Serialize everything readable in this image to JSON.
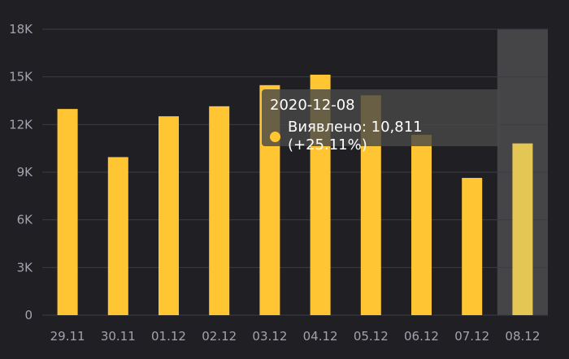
{
  "chart_data": {
    "type": "bar",
    "categories": [
      "29.11",
      "30.11",
      "01.12",
      "02.12",
      "03.12",
      "04.12",
      "05.12",
      "06.12",
      "07.12",
      "08.12"
    ],
    "series": [
      {
        "name": "Виявлено",
        "values": [
          12980,
          9950,
          12520,
          13150,
          14480,
          15140,
          13840,
          11350,
          8640,
          10811
        ]
      }
    ],
    "ylim": [
      0,
      18000
    ],
    "yticks": [
      "0",
      "3K",
      "6K",
      "9K",
      "12K",
      "15K",
      "18K"
    ],
    "ytick_values": [
      0,
      3000,
      6000,
      9000,
      12000,
      15000,
      18000
    ],
    "grid": true,
    "highlighted_index": 9,
    "colors": {
      "bar": "#ffc533",
      "bar_highlight": "#e3c654",
      "highlight_band": "#454548",
      "grid": "#3c3c43",
      "background": "#1f1f24"
    }
  },
  "tooltip": {
    "date": "2020-12-08",
    "text": "Виявлено: 10,811 (+25.11%)"
  }
}
